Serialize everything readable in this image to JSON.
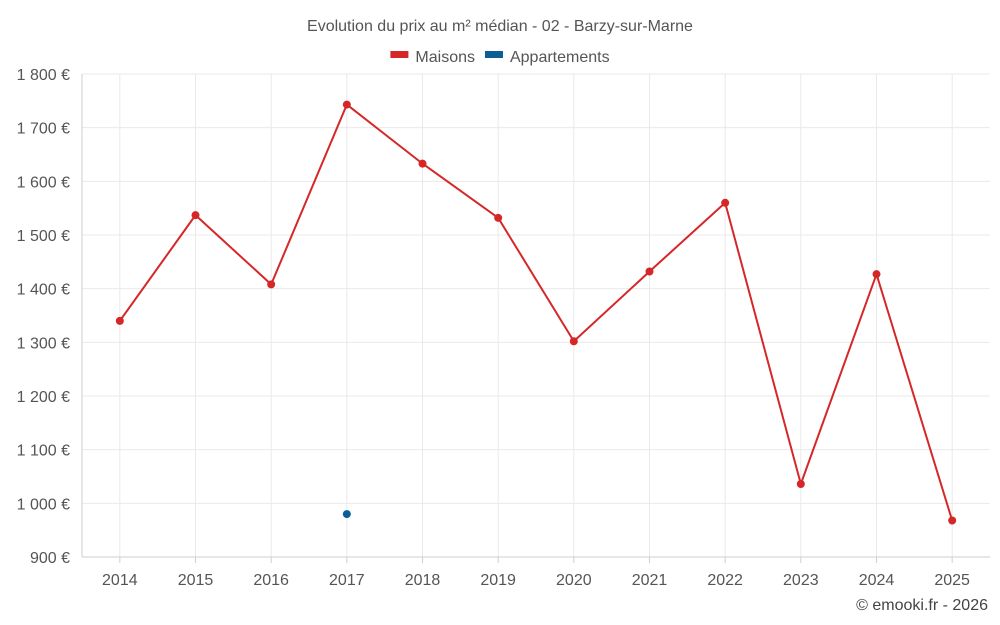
{
  "chart_data": {
    "type": "line",
    "title": "Evolution du prix au m² médian - 02 - Barzy-sur-Marne",
    "xlabel": "",
    "ylabel": "",
    "categories": [
      "2014",
      "2015",
      "2016",
      "2017",
      "2018",
      "2019",
      "2020",
      "2021",
      "2022",
      "2023",
      "2024",
      "2025"
    ],
    "ylim": [
      900,
      1800
    ],
    "yticks": [
      900,
      1000,
      1100,
      1200,
      1300,
      1400,
      1500,
      1600,
      1700,
      1800
    ],
    "ytick_labels": [
      "900 €",
      "1 000 €",
      "1 100 €",
      "1 200 €",
      "1 300 €",
      "1 400 €",
      "1 500 €",
      "1 600 €",
      "1 700 €",
      "1 800 €"
    ],
    "grid": true,
    "legend_position": "top-center",
    "series": [
      {
        "name": "Maisons",
        "color": "#d62728",
        "values": [
          1340,
          1537,
          1408,
          1743,
          1633,
          1532,
          1302,
          1432,
          1560,
          1036,
          1427,
          968
        ]
      },
      {
        "name": "Appartements",
        "color": "#0b5f96",
        "values": [
          null,
          null,
          null,
          980,
          null,
          null,
          null,
          null,
          null,
          null,
          null,
          null
        ]
      }
    ]
  },
  "credit": "© emooki.fr - 2026"
}
